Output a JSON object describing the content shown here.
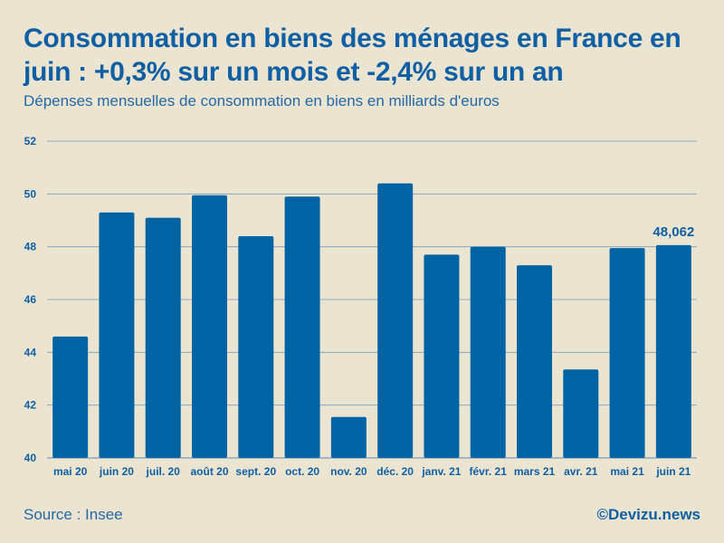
{
  "header": {
    "title": "Consommation en biens des ménages en France en juin : +0,3% sur un mois et -2,4% sur un an",
    "subtitle": "Dépenses mensuelles de consommation en biens en milliards d'euros"
  },
  "footer": {
    "source": "Source : Insee",
    "brand": "©Devizu.news"
  },
  "colors": {
    "background": "#ebe4d1",
    "bar": "#0064a4",
    "text": "#0f5fa4",
    "grid": "#7a9bbd"
  },
  "chart_data": {
    "type": "bar",
    "title": "Consommation en biens des ménages en France en juin : +0,3% sur un mois et -2,4% sur un an",
    "subtitle": "Dépenses mensuelles de consommation en biens en milliards d'euros",
    "xlabel": "",
    "ylabel": "",
    "ylim": [
      40,
      52
    ],
    "yticks": [
      40,
      42,
      44,
      46,
      48,
      50,
      52
    ],
    "grid": true,
    "categories": [
      "mai 20",
      "juin 20",
      "juil. 20",
      "août 20",
      "sept. 20",
      "oct. 20",
      "nov. 20",
      "déc. 20",
      "janv. 21",
      "févr. 21",
      "mars 21",
      "avr. 21",
      "mai 21",
      "juin 21"
    ],
    "values": [
      44.6,
      49.3,
      49.1,
      49.95,
      48.4,
      49.9,
      41.55,
      50.4,
      47.7,
      48.0,
      47.3,
      43.35,
      47.95,
      48.062
    ],
    "annotations": [
      {
        "category": "juin 21",
        "text": "48,062"
      }
    ]
  }
}
